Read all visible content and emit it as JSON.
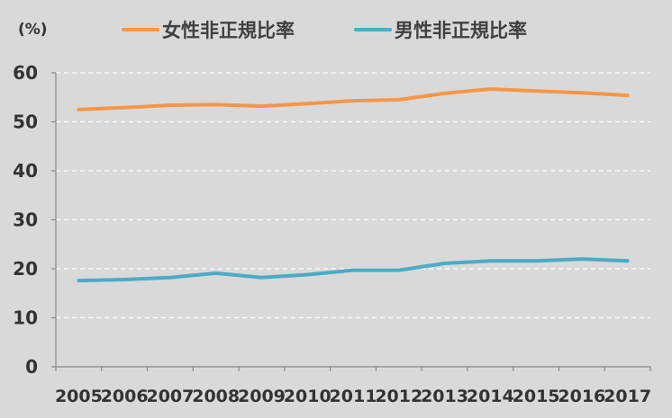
{
  "chart_data": {
    "type": "line",
    "unit_label": "(%)",
    "categories": [
      "2005",
      "2006",
      "2007",
      "2008",
      "2009",
      "2010",
      "2011",
      "2012",
      "2013",
      "2014",
      "2015",
      "2016",
      "2017"
    ],
    "ylim": [
      0,
      60
    ],
    "yticks": [
      0,
      10,
      20,
      30,
      40,
      50,
      60
    ],
    "grid": "horizontal dashed",
    "legend": "top",
    "series": [
      {
        "name": "女性非正規比率",
        "color": "#f79646",
        "values": [
          52.5,
          52.9,
          53.4,
          53.5,
          53.2,
          53.7,
          54.3,
          54.5,
          55.8,
          56.7,
          56.3,
          55.9,
          55.4
        ]
      },
      {
        "name": "男性非正規比率",
        "color": "#4bacc6",
        "values": [
          17.6,
          17.8,
          18.2,
          19.1,
          18.2,
          18.8,
          19.7,
          19.7,
          21.1,
          21.6,
          21.6,
          22.0,
          21.6
        ]
      }
    ]
  }
}
